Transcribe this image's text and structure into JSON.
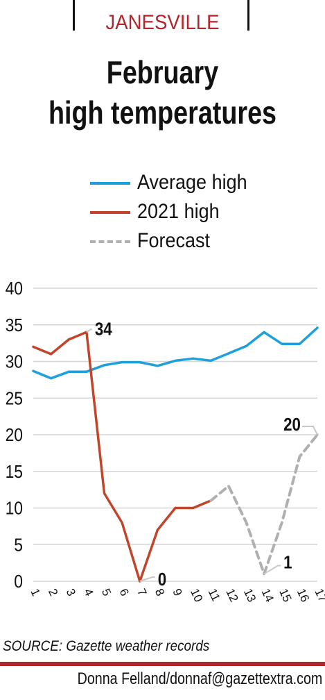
{
  "header": {
    "kicker": "JANESVILLE",
    "title_line1": "February",
    "title_line2": "high temperatures"
  },
  "colors": {
    "average": "#1ea0db",
    "y2021": "#c0452a",
    "forecast": "#b0b0b0",
    "accent": "#b3262d"
  },
  "chart_data": {
    "type": "line",
    "title": "February high temperatures",
    "xlabel": "",
    "ylabel": "",
    "ylim": [
      0,
      40
    ],
    "yticks": [
      0,
      5,
      10,
      15,
      20,
      25,
      30,
      35,
      40
    ],
    "grid": true,
    "legend_position": "top",
    "x": [
      "1",
      "2",
      "3",
      "4",
      "5",
      "6",
      "7",
      "8",
      "9",
      "10",
      "11",
      "12",
      "13",
      "14",
      "15",
      "16",
      "17"
    ],
    "series": [
      {
        "name": "Average high",
        "x": [
          1,
          2,
          3,
          4,
          5,
          6,
          7,
          8,
          9,
          10,
          11,
          12,
          13,
          14,
          15,
          16,
          17
        ],
        "values": [
          28.7,
          27.7,
          28.6,
          28.6,
          29.5,
          29.9,
          29.9,
          29.4,
          30.1,
          30.4,
          30.1,
          31.1,
          32.1,
          34,
          32.4,
          32.4,
          34.6
        ]
      },
      {
        "name": "2021 high",
        "x": [
          1,
          2,
          3,
          4,
          5,
          6,
          7,
          8,
          9,
          10,
          11
        ],
        "values": [
          32,
          31,
          33,
          34,
          12,
          8,
          0,
          7,
          10,
          10,
          11
        ]
      },
      {
        "name": "Forecast",
        "x": [
          11,
          12,
          13,
          14,
          15,
          16,
          17
        ],
        "values": [
          11,
          13,
          8,
          1,
          8,
          17,
          20
        ]
      }
    ],
    "annotations": [
      {
        "x": 4,
        "y": 34,
        "text": "34"
      },
      {
        "x": 7,
        "y": 0,
        "text": "0"
      },
      {
        "x": 14,
        "y": 1,
        "text": "1"
      },
      {
        "x": 17,
        "y": 20,
        "text": "20"
      }
    ]
  },
  "footer": {
    "source": "SOURCE: Gazette weather records",
    "credit": "Donna Felland/donnaf@gazettextra.com"
  }
}
